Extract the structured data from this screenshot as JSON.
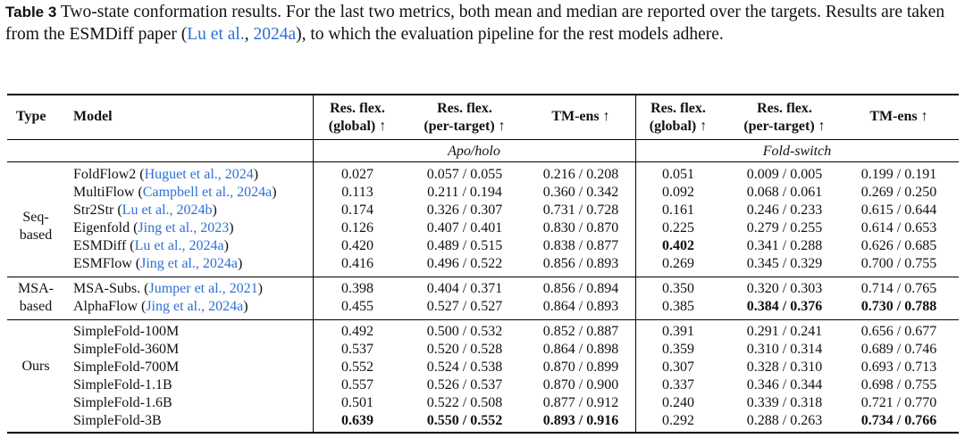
{
  "caption": {
    "label": "Table 3",
    "text_before": " Two-state conformation results. For the last two metrics, both mean and median are reported over the targets. Results are taken from the ESMDiff paper (",
    "cite_a": "Lu et al.",
    "cite_sep": ", ",
    "cite_b": "2024a",
    "text_after": "), to which the evaluation pipeline for the rest models adhere."
  },
  "header": {
    "type": "Type",
    "model": "Model",
    "cols": [
      {
        "l1": "Res. flex.",
        "l2": "(global) ↑"
      },
      {
        "l1": "Res. flex.",
        "l2": "(per-target) ↑"
      },
      {
        "l1": "TM-ens ↑",
        "l2": ""
      },
      {
        "l1": "Res. flex.",
        "l2": "(global) ↑"
      },
      {
        "l1": "Res. flex.",
        "l2": "(per-target) ↑"
      },
      {
        "l1": "TM-ens ↑",
        "l2": ""
      }
    ],
    "group_left": "Apo/holo",
    "group_right": "Fold-switch"
  },
  "groups": [
    {
      "type_l1": "Seq-",
      "type_l2": "based"
    },
    {
      "type_l1": "MSA-",
      "type_l2": "based"
    },
    {
      "type_l1": "Ours",
      "type_l2": ""
    }
  ],
  "rows": [
    {
      "name": "FoldFlow2 ",
      "cite": "Huguet et al., 2024",
      "v": [
        "0.027",
        "0.057 / 0.055",
        "0.216 / 0.208",
        "0.051",
        "0.009 / 0.005",
        "0.199 / 0.191"
      ]
    },
    {
      "name": "MultiFlow ",
      "cite": "Campbell et al., 2024a",
      "v": [
        "0.113",
        "0.211 / 0.194",
        "0.360 / 0.342",
        "0.092",
        "0.068 / 0.061",
        "0.269 / 0.250"
      ]
    },
    {
      "name": "Str2Str ",
      "cite": "Lu et al., 2024b",
      "v": [
        "0.174",
        "0.326 / 0.307",
        "0.731 / 0.728",
        "0.161",
        "0.246 / 0.233",
        "0.615 / 0.644"
      ]
    },
    {
      "name": "Eigenfold ",
      "cite": "Jing et al., 2023",
      "v": [
        "0.126",
        "0.407 / 0.401",
        "0.830 / 0.870",
        "0.225",
        "0.279 / 0.255",
        "0.614 / 0.653"
      ]
    },
    {
      "name": "ESMDiff ",
      "cite": "Lu et al., 2024a",
      "v": [
        "0.420",
        "0.489 / 0.515",
        "0.838 / 0.877",
        "0.402",
        "0.341 / 0.288",
        "0.626 / 0.685"
      ]
    },
    {
      "name": "ESMFlow ",
      "cite": "Jing et al., 2024a",
      "v": [
        "0.416",
        "0.496 / 0.522",
        "0.856 / 0.893",
        "0.269",
        "0.345 / 0.329",
        "0.700 / 0.755"
      ]
    },
    {
      "name": "MSA-Subs. ",
      "cite": "Jumper et al., 2021",
      "v": [
        "0.398",
        "0.404 / 0.371",
        "0.856 / 0.894",
        "0.350",
        "0.320 / 0.303",
        "0.714 / 0.765"
      ]
    },
    {
      "name": "AlphaFlow ",
      "cite": "Jing et al., 2024a",
      "v": [
        "0.455",
        "0.527 / 0.527",
        "0.864 / 0.893",
        "0.385",
        "0.384 / 0.376",
        "0.730 / 0.788"
      ]
    },
    {
      "name": "SimpleFold-100M",
      "cite": "",
      "v": [
        "0.492",
        "0.500 / 0.532",
        "0.852 / 0.887",
        "0.391",
        "0.291 / 0.241",
        "0.656 / 0.677"
      ]
    },
    {
      "name": "SimpleFold-360M",
      "cite": "",
      "v": [
        "0.537",
        "0.520 / 0.528",
        "0.864 / 0.898",
        "0.359",
        "0.310 / 0.314",
        "0.689 / 0.746"
      ]
    },
    {
      "name": "SimpleFold-700M",
      "cite": "",
      "v": [
        "0.552",
        "0.524 / 0.538",
        "0.870 / 0.899",
        "0.307",
        "0.328 / 0.310",
        "0.693 / 0.713"
      ]
    },
    {
      "name": "SimpleFold-1.1B",
      "cite": "",
      "v": [
        "0.557",
        "0.526 / 0.537",
        "0.870 / 0.900",
        "0.337",
        "0.346 / 0.344",
        "0.698 / 0.755"
      ]
    },
    {
      "name": "SimpleFold-1.6B",
      "cite": "",
      "v": [
        "0.501",
        "0.522 / 0.508",
        "0.877 / 0.912",
        "0.240",
        "0.339 / 0.318",
        "0.721 / 0.770"
      ]
    },
    {
      "name": "SimpleFold-3B",
      "cite": "",
      "v": [
        "0.639",
        "0.550 / 0.552",
        "0.893 / 0.916",
        "0.292",
        "0.288 / 0.263",
        "0.734 / 0.766"
      ]
    }
  ],
  "bold_cells": [
    "4.3",
    "7.4",
    "7.5",
    "13.0",
    "13.1",
    "13.2",
    "13.5"
  ],
  "cite_color": "#2f6fd6"
}
